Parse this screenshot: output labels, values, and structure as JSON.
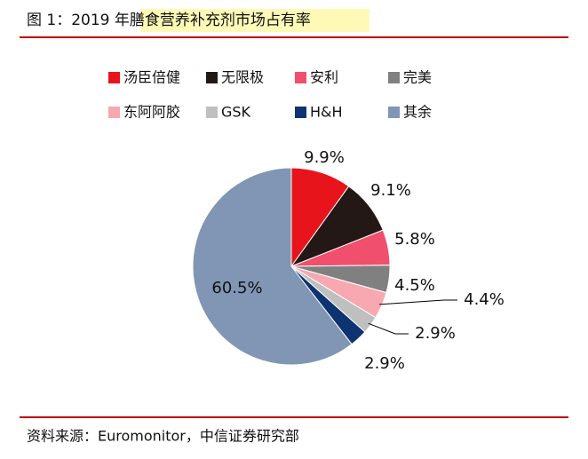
{
  "chart_data": {
    "type": "pie",
    "title": "图 1：2019 年膳食营养补充剂市场占有率",
    "source": "资料来源：Euromonitor，中信证券研究部",
    "categories": [
      "汤臣倍健",
      "无限极",
      "安利",
      "完美",
      "东阿阿胶",
      "GSK",
      "H&H",
      "其余"
    ],
    "values": [
      9.9,
      9.1,
      5.8,
      4.5,
      4.4,
      2.9,
      2.9,
      60.5
    ],
    "value_labels": [
      "9.9%",
      "9.1%",
      "5.8%",
      "4.5%",
      "4.4%",
      "2.9%",
      "2.9%",
      "60.5%"
    ],
    "colors": [
      "#e8141c",
      "#231815",
      "#f0506e",
      "#808080",
      "#f7a8b0",
      "#bfbfbf",
      "#0d3470",
      "#8096b4"
    ]
  }
}
